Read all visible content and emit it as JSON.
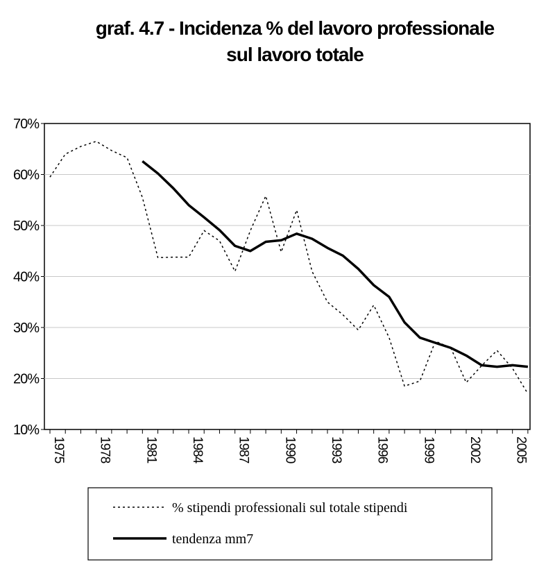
{
  "chart_data": {
    "type": "line",
    "title": "graf. 4.7 - Incidenza % del lavoro professionale",
    "subtitle": "sul lavoro totale",
    "xlabel": "",
    "ylabel": "",
    "ylim": [
      10,
      70
    ],
    "y_ticks": [
      "10%",
      "20%",
      "30%",
      "40%",
      "50%",
      "60%",
      "70%"
    ],
    "x_ticks": [
      "1975",
      "1978",
      "1981",
      "1984",
      "1987",
      "1990",
      "1993",
      "1996",
      "1999",
      "2002",
      "2005"
    ],
    "x": [
      1975,
      1976,
      1977,
      1978,
      1979,
      1980,
      1981,
      1982,
      1983,
      1984,
      1985,
      1986,
      1987,
      1988,
      1989,
      1990,
      1991,
      1992,
      1993,
      1994,
      1995,
      1996,
      1997,
      1998,
      1999,
      2000,
      2001,
      2002,
      2003,
      2004,
      2005,
      2006
    ],
    "series": [
      {
        "name": "% stipendi professionali sul totale stipendi",
        "style": "dotted",
        "values": [
          59.5,
          64.0,
          65.5,
          66.5,
          64.7,
          63.3,
          55.5,
          43.7,
          43.8,
          43.8,
          49.0,
          47.0,
          41.0,
          49.0,
          55.8,
          44.8,
          53.0,
          41.0,
          35.0,
          32.5,
          29.5,
          34.4,
          28.0,
          18.5,
          19.5,
          27.3,
          26.0,
          19.2,
          22.5,
          25.5,
          22.0,
          17.0
        ]
      },
      {
        "name": "tendenza mm7",
        "style": "solid",
        "values": [
          null,
          null,
          null,
          null,
          null,
          null,
          62.6,
          60.2,
          57.3,
          54.0,
          51.6,
          49.1,
          46.0,
          45.0,
          46.8,
          47.1,
          48.4,
          47.4,
          45.6,
          44.1,
          41.5,
          38.3,
          36.0,
          31.0,
          28.0,
          27.0,
          26.0,
          24.5,
          22.6,
          22.3,
          22.6,
          22.3
        ]
      }
    ],
    "grid": true,
    "legend_position": "bottom"
  }
}
